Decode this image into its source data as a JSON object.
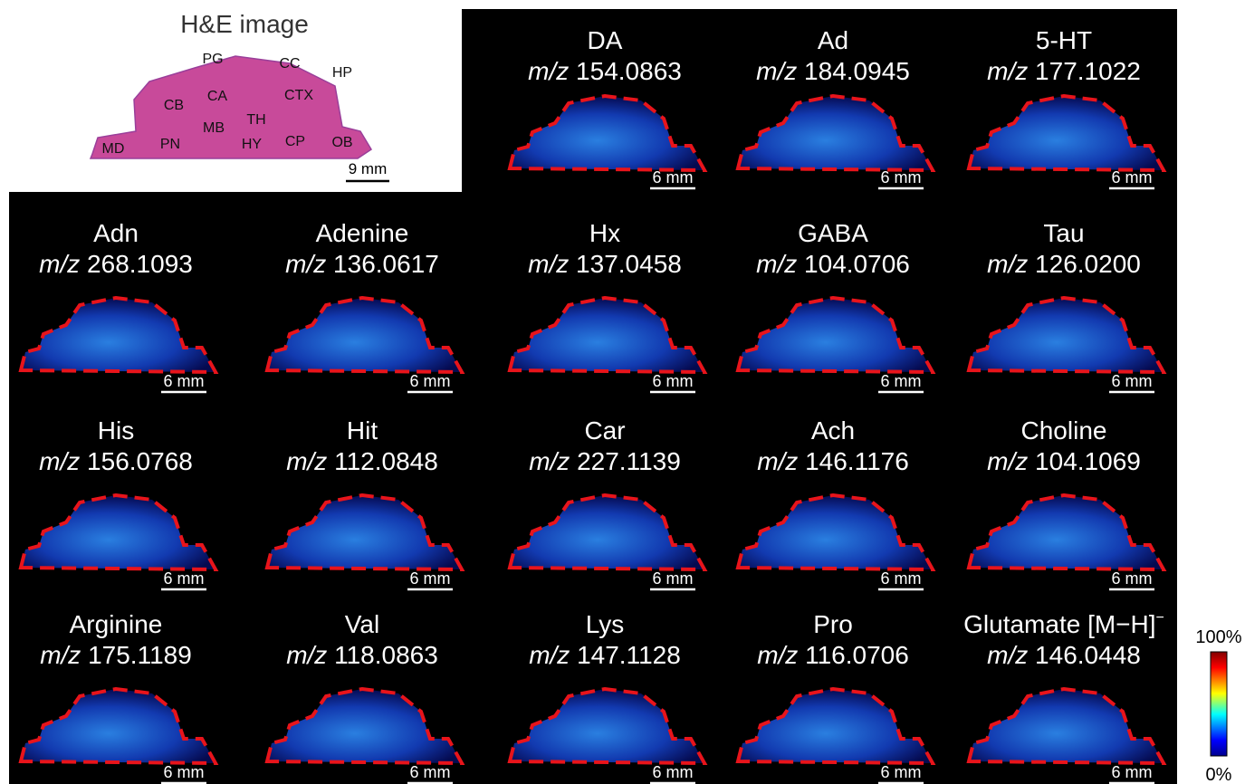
{
  "he_panel": {
    "title": "H&E image",
    "regions": [
      "PG",
      "CC",
      "HP",
      "CB",
      "CA",
      "CTX",
      "TH",
      "MB",
      "MD",
      "PN",
      "HY",
      "CP",
      "OB"
    ],
    "scale": "9 mm"
  },
  "panels": [
    {
      "name": "DA",
      "mz_label": "m/z",
      "mz": "154.0863",
      "scale": "6 mm"
    },
    {
      "name": "Ad",
      "mz_label": "m/z",
      "mz": "184.0945",
      "scale": "6 mm"
    },
    {
      "name": "5-HT",
      "mz_label": "m/z",
      "mz": "177.1022",
      "scale": "6 mm"
    },
    {
      "name": "Adn",
      "mz_label": "m/z",
      "mz": "268.1093",
      "scale": "6 mm"
    },
    {
      "name": "Adenine",
      "mz_label": "m/z",
      "mz": "136.0617",
      "scale": "6 mm"
    },
    {
      "name": "Hx",
      "mz_label": "m/z",
      "mz": "137.0458",
      "scale": "6 mm"
    },
    {
      "name": "GABA",
      "mz_label": "m/z",
      "mz": "104.0706",
      "scale": "6 mm"
    },
    {
      "name": "Tau",
      "mz_label": "m/z",
      "mz": "126.0200",
      "scale": "6 mm"
    },
    {
      "name": "His",
      "mz_label": "m/z",
      "mz": "156.0768",
      "scale": "6 mm"
    },
    {
      "name": "Hit",
      "mz_label": "m/z",
      "mz": "112.0848",
      "scale": "6 mm"
    },
    {
      "name": "Car",
      "mz_label": "m/z",
      "mz": "227.1139",
      "scale": "6 mm"
    },
    {
      "name": "Ach",
      "mz_label": "m/z",
      "mz": "146.1176",
      "scale": "6 mm"
    },
    {
      "name": "Choline",
      "mz_label": "m/z",
      "mz": "104.1069",
      "scale": "6 mm"
    },
    {
      "name": "Arginine",
      "mz_label": "m/z",
      "mz": "175.1189",
      "scale": "6 mm"
    },
    {
      "name": "Val",
      "mz_label": "m/z",
      "mz": "118.0863",
      "scale": "6 mm"
    },
    {
      "name": "Lys",
      "mz_label": "m/z",
      "mz": "147.1128",
      "scale": "6 mm"
    },
    {
      "name": "Pro",
      "mz_label": "m/z",
      "mz": "116.0706",
      "scale": "6 mm"
    },
    {
      "name": "Glutamate [M−H]",
      "name_sup": "−",
      "mz_label": "m/z",
      "mz": "146.0448",
      "scale": "6 mm"
    }
  ],
  "colorbar": {
    "max_label": "100%",
    "min_label": "0%"
  }
}
